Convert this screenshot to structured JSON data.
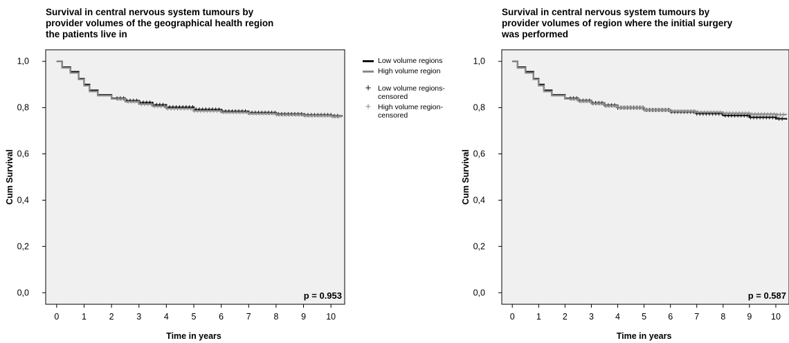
{
  "legend": {
    "items": [
      {
        "label": "Low volume regions",
        "kind": "line",
        "color": "#111111"
      },
      {
        "label": "High volume region",
        "kind": "line",
        "color": "#8a8a8a"
      },
      {
        "label": "Low volume regions-\ncensored",
        "kind": "plus",
        "color": "#111111"
      },
      {
        "label": "High volume region-\ncensored",
        "kind": "plus",
        "color": "#8a8a8a"
      }
    ]
  },
  "chart_data": [
    {
      "type": "line",
      "title": "Survival in central nervous system tumours by\nprovider volumes of the geographical health region\nthe patients live in",
      "xlabel": "Time in years",
      "ylabel": "Cum Survival",
      "xlim": [
        -0.4,
        10.5
      ],
      "ylim": [
        -0.05,
        1.05
      ],
      "xticks": [
        "0",
        "1",
        "2",
        "3",
        "4",
        "5",
        "6",
        "7",
        "8",
        "9",
        "10"
      ],
      "yticks": [
        "0,0",
        "0,2",
        "0,4",
        "0,6",
        "0,8",
        "1,0"
      ],
      "annotation": "p = 0.953",
      "background": "#f0f0f0",
      "series": [
        {
          "name": "Low volume regions",
          "color": "#111111",
          "x": [
            0,
            0.2,
            0.5,
            0.8,
            1.0,
            1.2,
            1.5,
            2.0,
            2.5,
            3.0,
            3.5,
            4.0,
            5.0,
            6.0,
            7.0,
            8.0,
            9.0,
            10.0,
            10.4
          ],
          "y": [
            1.0,
            0.975,
            0.955,
            0.925,
            0.9,
            0.875,
            0.855,
            0.84,
            0.83,
            0.822,
            0.812,
            0.802,
            0.792,
            0.784,
            0.778,
            0.772,
            0.768,
            0.764,
            0.762
          ]
        },
        {
          "name": "High volume region",
          "color": "#8a8a8a",
          "x": [
            0,
            0.2,
            0.5,
            0.8,
            1.0,
            1.2,
            1.5,
            2.0,
            2.5,
            3.0,
            3.5,
            4.0,
            5.0,
            6.0,
            7.0,
            8.0,
            9.0,
            10.0,
            10.4
          ],
          "y": [
            1.0,
            0.972,
            0.95,
            0.922,
            0.895,
            0.87,
            0.852,
            0.838,
            0.826,
            0.815,
            0.806,
            0.796,
            0.786,
            0.78,
            0.775,
            0.77,
            0.766,
            0.762,
            0.76
          ]
        }
      ]
    },
    {
      "type": "line",
      "title": "Survival in central nervous system tumours by\nprovider volumes of region where the initial surgery\nwas performed",
      "xlabel": "Time in years",
      "ylabel": "Cum Survival",
      "xlim": [
        -0.4,
        10.5
      ],
      "ylim": [
        -0.05,
        1.05
      ],
      "xticks": [
        "0",
        "1",
        "2",
        "3",
        "4",
        "5",
        "6",
        "7",
        "8",
        "9",
        "10"
      ],
      "yticks": [
        "0,0",
        "0,2",
        "0,4",
        "0,6",
        "0,8",
        "1,0"
      ],
      "annotation": "p = 0.587",
      "background": "#f0f0f0",
      "series": [
        {
          "name": "Low volume regions",
          "color": "#111111",
          "x": [
            0,
            0.2,
            0.5,
            0.8,
            1.0,
            1.2,
            1.5,
            2.0,
            2.5,
            3.0,
            3.5,
            4.0,
            5.0,
            6.0,
            7.0,
            8.0,
            9.0,
            10.0,
            10.4
          ],
          "y": [
            1.0,
            0.975,
            0.955,
            0.925,
            0.9,
            0.875,
            0.855,
            0.84,
            0.83,
            0.82,
            0.81,
            0.8,
            0.79,
            0.782,
            0.774,
            0.766,
            0.758,
            0.752,
            0.748
          ]
        },
        {
          "name": "High volume region",
          "color": "#8a8a8a",
          "x": [
            0,
            0.2,
            0.5,
            0.8,
            1.0,
            1.2,
            1.5,
            2.0,
            2.5,
            3.0,
            3.5,
            4.0,
            5.0,
            6.0,
            7.0,
            8.0,
            9.0,
            10.0,
            10.4
          ],
          "y": [
            1.0,
            0.972,
            0.95,
            0.922,
            0.895,
            0.87,
            0.852,
            0.838,
            0.828,
            0.818,
            0.808,
            0.8,
            0.79,
            0.784,
            0.78,
            0.776,
            0.772,
            0.77,
            0.769
          ]
        }
      ]
    }
  ]
}
